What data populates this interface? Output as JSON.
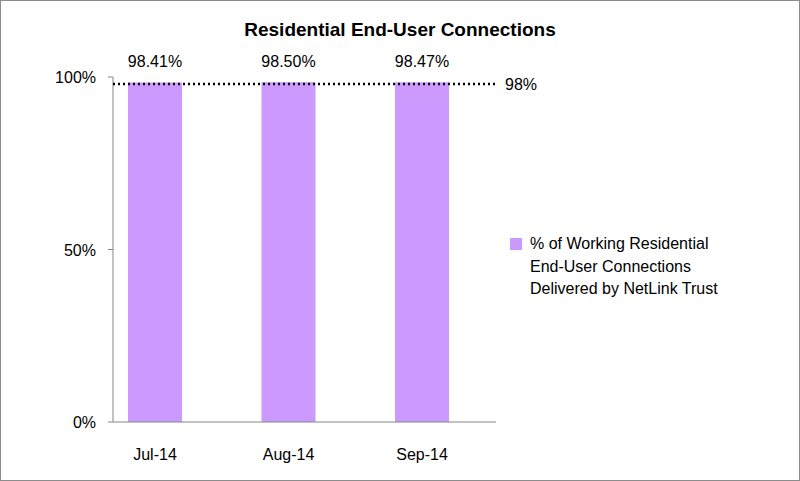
{
  "chart_data": {
    "type": "bar",
    "title": "Residential End-User Connections",
    "categories": [
      "Jul-14",
      "Aug-14",
      "Sep-14"
    ],
    "series": [
      {
        "name": "% of Working Residential End-User Connections Delivered by NetLink Trust",
        "color": "#cc99ff",
        "values": [
          98.41,
          98.5,
          98.47
        ],
        "value_labels": [
          "98.41%",
          "98.50%",
          "98.47%"
        ]
      }
    ],
    "ylim": [
      0,
      100
    ],
    "yticks": [
      {
        "value": 0,
        "label": "0%"
      },
      {
        "value": 50,
        "label": "50%"
      },
      {
        "value": 100,
        "label": "100%"
      }
    ],
    "annotations": [
      {
        "value": 98,
        "label": "98%",
        "line_style": "dotted"
      }
    ],
    "data_labels": true,
    "legend": "right",
    "grid": false
  }
}
